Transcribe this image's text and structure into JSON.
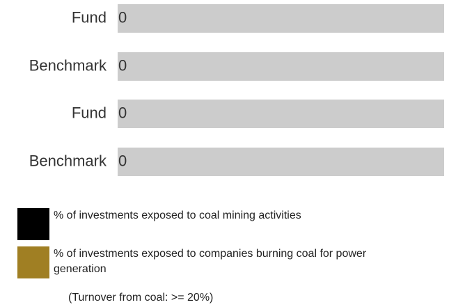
{
  "chart_data": [
    {
      "type": "bar",
      "orientation": "horizontal",
      "categories": [
        "Fund",
        "Benchmark"
      ],
      "series": [
        {
          "name": "% of investments exposed to coal mining activities",
          "color": "#000000",
          "values": [
            0,
            0
          ]
        }
      ],
      "xlim": [
        0,
        100
      ]
    },
    {
      "type": "bar",
      "orientation": "horizontal",
      "categories": [
        "Fund",
        "Benchmark"
      ],
      "series": [
        {
          "name": "% of investments exposed to companies burning coal for power generation",
          "color": "#a07f23",
          "values": [
            0,
            0
          ]
        }
      ],
      "xlim": [
        0,
        100
      ],
      "note": "(Turnover from coal: >= 20%)"
    }
  ]
}
